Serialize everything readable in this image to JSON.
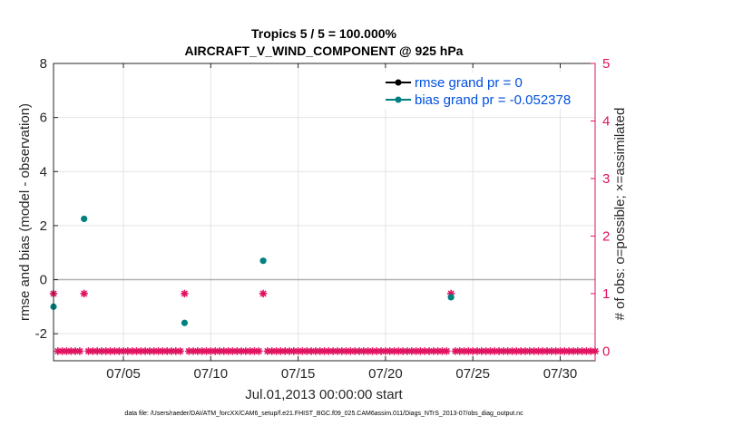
{
  "chart_data": {
    "type": "scatter",
    "title": "Tropics 5 / 5 = 100.000%",
    "subtitle": "AIRCRAFT_V_WIND_COMPONENT @ 925 hPa",
    "xlabel": "Jul.01,2013 00:00:00 start",
    "ylabel": "rmse and bias (model - observation)",
    "y2label": "# of obs: o=possible; ×=assimilated",
    "x_range_days": [
      1.0,
      32.0
    ],
    "ylim": [
      -3,
      8
    ],
    "y2lim": [
      -0.1667,
      5
    ],
    "x_ticks": [
      {
        "day": 5,
        "label": "07/05"
      },
      {
        "day": 10,
        "label": "07/10"
      },
      {
        "day": 15,
        "label": "07/15"
      },
      {
        "day": 20,
        "label": "07/20"
      },
      {
        "day": 25,
        "label": "07/25"
      },
      {
        "day": 30,
        "label": "07/30"
      }
    ],
    "y_ticks": [
      -2,
      0,
      2,
      4,
      6,
      8
    ],
    "y_tick_labels": [
      "-2",
      "0",
      "2",
      "4",
      "6",
      "8"
    ],
    "y2_ticks": [
      0,
      1,
      2,
      3,
      4,
      5
    ],
    "y2_tick_labels": [
      "0",
      "1",
      "2",
      "3",
      "4",
      "5"
    ],
    "grid": true,
    "legend_position": "top-right",
    "colors": {
      "rmse": "#000000",
      "bias": "#008080",
      "obs": "#e0115f",
      "zero_line": "#b0b0b0",
      "legend_text": "#0050e0"
    },
    "series": [
      {
        "name": "rmse grand pr = 0",
        "kind": "rmse",
        "points": []
      },
      {
        "name": "bias grand pr = -0.052378",
        "kind": "bias",
        "points": [
          [
            1.0,
            -1.0
          ],
          [
            2.75,
            2.25
          ],
          [
            8.5,
            -1.6
          ],
          [
            13.0,
            0.7
          ],
          [
            23.75,
            -0.65
          ]
        ]
      },
      {
        "name": "obs possible",
        "kind": "obs",
        "counts": [
          {
            "day": 1.0,
            "n": 1
          },
          {
            "day": 2.75,
            "n": 1
          },
          {
            "day": 8.5,
            "n": 1
          },
          {
            "day": 13.0,
            "n": 1
          },
          {
            "day": 23.75,
            "n": 1
          }
        ]
      }
    ],
    "legend": [
      {
        "label": "rmse grand pr = 0",
        "kind": "rmse"
      },
      {
        "label": "bias grand pr = -0.052378",
        "kind": "bias"
      }
    ],
    "footnote": "data file: /Users/raeder/DAI/ATM_forcXX/CAM6_setup/f.e21.FHIST_BGC.f09_025.CAM6assim.011/Diags_NTrS_2013-07/obs_diag_output.nc"
  }
}
